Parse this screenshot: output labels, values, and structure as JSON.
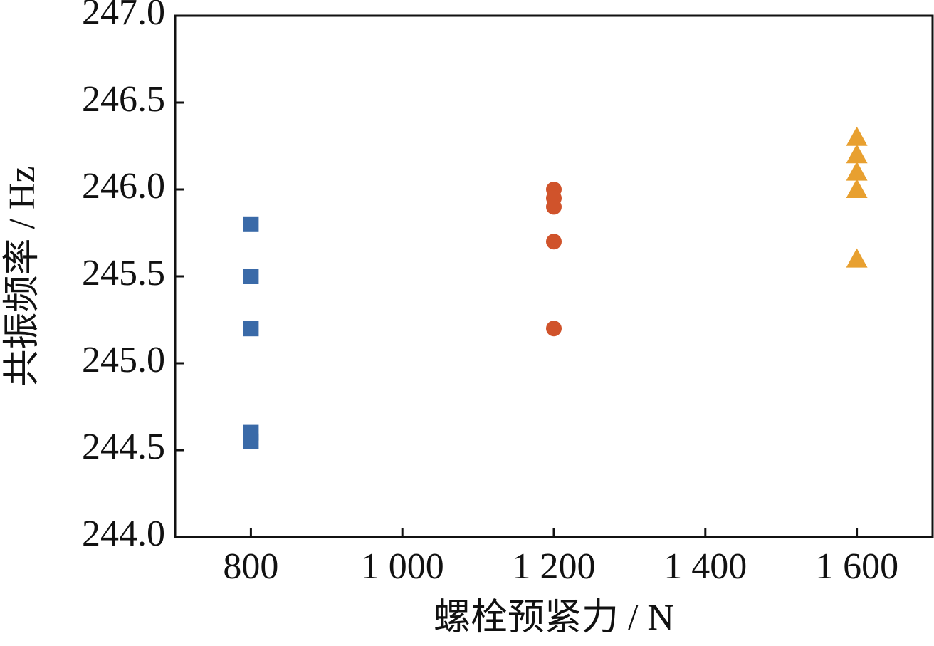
{
  "chart_data": {
    "type": "scatter",
    "x_label": "螺栓预紧力 / N",
    "y_label": "共振频率 / Hz",
    "xlim": [
      700,
      1700
    ],
    "xticks": [
      800,
      {
        "value": 1000,
        "label": "1 000"
      },
      {
        "value": 1200,
        "label": "1 200"
      },
      {
        "value": 1400,
        "label": "1 400"
      },
      {
        "value": 1600,
        "label": "1 600"
      }
    ],
    "ylim": [
      244,
      247
    ],
    "yticks": [
      {
        "value": 244,
        "label": "244.0"
      },
      {
        "value": 244.5,
        "label": "244.5"
      },
      {
        "value": 245,
        "label": "245.0"
      },
      {
        "value": 245.5,
        "label": "245.5"
      },
      {
        "value": 246,
        "label": "246.0"
      },
      {
        "value": 246.5,
        "label": "246.5"
      },
      {
        "value": 247,
        "label": "247.0"
      }
    ],
    "series": [
      {
        "color": "#3a6aa8",
        "marker": "square",
        "x": [
          800,
          800,
          800,
          800,
          800
        ],
        "values": [
          245.8,
          245.5,
          245.2,
          244.6,
          244.55
        ]
      },
      {
        "color": "#d0532b",
        "marker": "circle",
        "x": [
          1200,
          1200,
          1200,
          1200,
          1200
        ],
        "values": [
          246.0,
          245.95,
          245.9,
          245.7,
          245.2
        ]
      },
      {
        "color": "#e8a030",
        "marker": "triangle",
        "x": [
          1600,
          1600,
          1600,
          1600,
          1600
        ],
        "values": [
          246.3,
          246.2,
          246.1,
          246.0,
          245.6
        ]
      }
    ]
  }
}
